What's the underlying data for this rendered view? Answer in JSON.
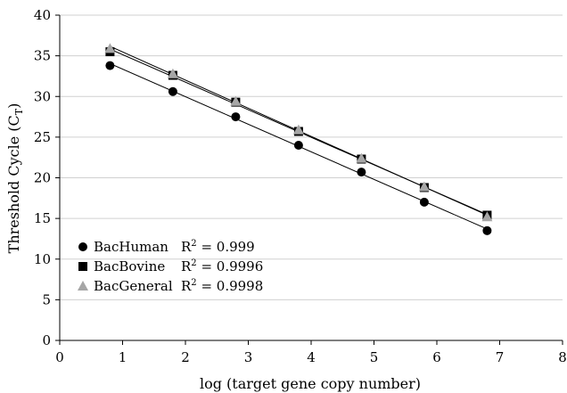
{
  "chart_data": {
    "type": "scatter",
    "title": "",
    "xlabel": "log (target gene copy number)",
    "ylabel": "Threshold Cycle (C",
    "ylabel_sub": "T",
    "ylabel_close": ")",
    "xlim": [
      0,
      8
    ],
    "ylim": [
      0,
      40
    ],
    "xticks": [
      0,
      1,
      2,
      3,
      4,
      5,
      6,
      7,
      8
    ],
    "yticks": [
      0,
      5,
      10,
      15,
      20,
      25,
      30,
      35,
      40
    ],
    "grid": "horizontal",
    "legend_position": "bottom-left",
    "trendlines": "linear",
    "series": [
      {
        "name": "BacHuman",
        "marker": "circle",
        "color": "#000000",
        "r2_label": "R",
        "r2_sup": "2",
        "r2_value": " = 0.999",
        "x": [
          0.8,
          1.8,
          2.8,
          3.8,
          4.8,
          5.8,
          6.8
        ],
        "y": [
          33.8,
          30.6,
          27.5,
          24.0,
          20.7,
          17.0,
          13.5
        ]
      },
      {
        "name": "BacBovine",
        "marker": "square",
        "color": "#000000",
        "r2_label": "R",
        "r2_sup": "2",
        "r2_value": " = 0.9996",
        "x": [
          0.8,
          1.8,
          2.8,
          3.8,
          4.8,
          5.8,
          6.8
        ],
        "y": [
          35.5,
          32.6,
          29.3,
          25.7,
          22.3,
          18.8,
          15.4
        ]
      },
      {
        "name": "BacGeneral",
        "marker": "triangle",
        "color": "#a6a6a6",
        "r2_label": "R",
        "r2_sup": "2",
        "r2_value": " = 0.9998",
        "x": [
          0.8,
          1.8,
          2.8,
          3.8,
          4.8,
          5.8,
          6.8
        ],
        "y": [
          35.9,
          32.8,
          29.4,
          25.9,
          22.4,
          18.9,
          15.2
        ]
      }
    ]
  }
}
